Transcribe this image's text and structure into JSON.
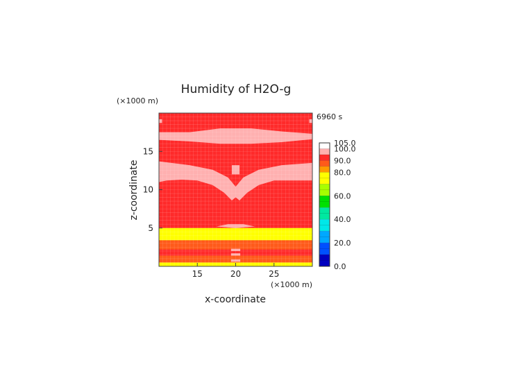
{
  "chart_data": {
    "type": "heatmap",
    "title": "Humidity of H2O-g",
    "xlabel": "x-coordinate",
    "ylabel": "z-coordinate",
    "x_unit": "(×1000 m)",
    "y_unit": "(×1000 m)",
    "time_label": "6960 s",
    "xlim": [
      10,
      30
    ],
    "ylim": [
      0,
      20
    ],
    "x_ticks": [
      15,
      20,
      25
    ],
    "y_ticks": [
      5,
      10,
      15
    ],
    "grid": true,
    "colorbar": {
      "min": 0,
      "max": 105,
      "labels": [
        "105.0",
        "100.0",
        "90.0",
        "80.0",
        "60.0",
        "40.0",
        "20.0",
        "0.0"
      ],
      "label_values": [
        105,
        100,
        90,
        80,
        60,
        40,
        20,
        0
      ],
      "bands": [
        {
          "from": 100,
          "to": 105,
          "color": "#ffffff"
        },
        {
          "from": 95,
          "to": 100,
          "color": "#ffb0b0"
        },
        {
          "from": 90,
          "to": 95,
          "color": "#ff2a2a"
        },
        {
          "from": 85,
          "to": 90,
          "color": "#ff5a1a"
        },
        {
          "from": 80,
          "to": 85,
          "color": "#ff9a00"
        },
        {
          "from": 70,
          "to": 80,
          "color": "#ffff00"
        },
        {
          "from": 60,
          "to": 70,
          "color": "#a8ff00"
        },
        {
          "from": 50,
          "to": 60,
          "color": "#00e000"
        },
        {
          "from": 40,
          "to": 50,
          "color": "#00e8a0"
        },
        {
          "from": 30,
          "to": 40,
          "color": "#00e8e8"
        },
        {
          "from": 20,
          "to": 30,
          "color": "#00a8ff"
        },
        {
          "from": 10,
          "to": 20,
          "color": "#0050ff"
        },
        {
          "from": 0,
          "to": 10,
          "color": "#0000c0"
        }
      ]
    },
    "regions": [
      {
        "shape": "rect",
        "x": [
          10,
          30
        ],
        "y": [
          0,
          20
        ],
        "value": 92
      },
      {
        "shape": "rect",
        "x": [
          10,
          30
        ],
        "y": [
          0,
          0.5
        ],
        "value": 78
      },
      {
        "shape": "rect",
        "x": [
          10,
          30
        ],
        "y": [
          0.5,
          1.4
        ],
        "value": 87
      },
      {
        "shape": "rect",
        "x": [
          10,
          30
        ],
        "y": [
          1.4,
          3.4
        ],
        "value": 92
      },
      {
        "shape": "rect",
        "x": [
          10,
          30
        ],
        "y": [
          3.4,
          5.0
        ],
        "value": 78
      },
      {
        "shape": "rect",
        "x": [
          10,
          30
        ],
        "y": [
          2.2,
          3.4
        ],
        "value": 86
      },
      {
        "shape": "poly",
        "points": [
          [
            10,
            17.5
          ],
          [
            14,
            17.5
          ],
          [
            18,
            18.0
          ],
          [
            22,
            18.0
          ],
          [
            26,
            17.6
          ],
          [
            30,
            17.3
          ],
          [
            30,
            16.6
          ],
          [
            26,
            16.2
          ],
          [
            22,
            16.0
          ],
          [
            18,
            16.0
          ],
          [
            14,
            16.3
          ],
          [
            10,
            16.5
          ]
        ],
        "value": 98
      },
      {
        "shape": "poly",
        "points": [
          [
            10,
            13.7
          ],
          [
            14,
            13.2
          ],
          [
            17,
            12.6
          ],
          [
            19,
            11.6
          ],
          [
            20,
            10.4
          ],
          [
            20,
            9.0
          ],
          [
            19.5,
            8.6
          ],
          [
            18.5,
            9.6
          ],
          [
            17,
            10.6
          ],
          [
            15,
            11.2
          ],
          [
            13,
            11.3
          ],
          [
            11,
            11.2
          ],
          [
            10,
            11.0
          ]
        ],
        "value": 98
      },
      {
        "shape": "poly",
        "points": [
          [
            20,
            10.4
          ],
          [
            21,
            11.6
          ],
          [
            23,
            12.6
          ],
          [
            26,
            13.2
          ],
          [
            30,
            13.5
          ],
          [
            30,
            11.2
          ],
          [
            28,
            11.2
          ],
          [
            25,
            11.2
          ],
          [
            23,
            10.6
          ],
          [
            21.5,
            9.6
          ],
          [
            20.5,
            8.6
          ],
          [
            20,
            9.0
          ]
        ],
        "value": 98
      },
      {
        "shape": "rect",
        "x": [
          19.5,
          20.5
        ],
        "y": [
          12.0,
          13.2
        ],
        "value": 98
      },
      {
        "shape": "poly",
        "points": [
          [
            17.5,
            5.2
          ],
          [
            19,
            5.5
          ],
          [
            21,
            5.5
          ],
          [
            22.5,
            5.2
          ],
          [
            20,
            5.0
          ]
        ],
        "value": 98
      },
      {
        "shape": "rect",
        "x": [
          19.4,
          20.6
        ],
        "y": [
          0.6,
          0.9
        ],
        "value": 98
      },
      {
        "shape": "rect",
        "x": [
          19.4,
          20.6
        ],
        "y": [
          1.4,
          1.7
        ],
        "value": 98
      },
      {
        "shape": "rect",
        "x": [
          19.4,
          20.6
        ],
        "y": [
          2.0,
          2.3
        ],
        "value": 98
      },
      {
        "shape": "rect",
        "x": [
          10,
          10.4
        ],
        "y": [
          18.7,
          19.2
        ],
        "value": 98
      },
      {
        "shape": "rect",
        "x": [
          29.6,
          30
        ],
        "y": [
          18.7,
          19.2
        ],
        "value": 98
      }
    ]
  }
}
